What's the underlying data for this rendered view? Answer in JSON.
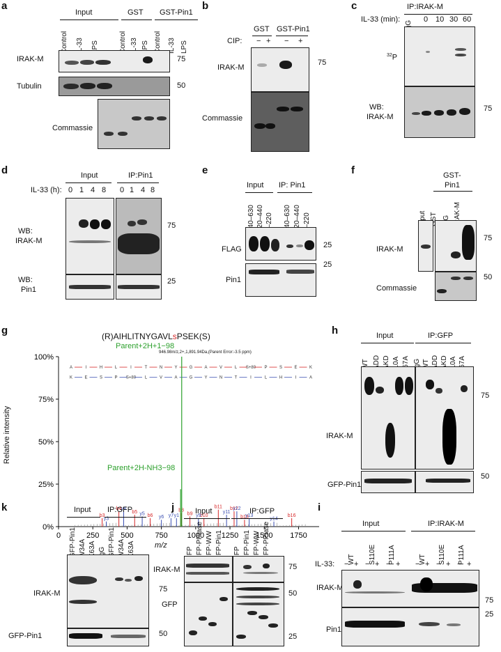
{
  "panels": {
    "a": {
      "letter": "a",
      "groups": [
        "Input",
        "GST",
        "GST-Pin1"
      ],
      "lanes": [
        "Control",
        "IL-33",
        "LPS",
        "Control",
        "IL-33",
        "LPS",
        "Control",
        "IL-33",
        "LPS"
      ],
      "rows": [
        "IRAK-M",
        "Tubulin",
        "Commassie"
      ],
      "mw": [
        "75",
        "50"
      ]
    },
    "b": {
      "letter": "b",
      "groups": [
        "GST",
        "GST-Pin1"
      ],
      "cip_label": "CIP:",
      "cip_signs": [
        "−",
        "+",
        "−",
        "+"
      ],
      "rows": [
        "IRAK-M",
        "Commassie"
      ],
      "mw": [
        "75"
      ]
    },
    "c": {
      "letter": "c",
      "header": "IP:IRAK-M",
      "time_label": "IL-33 (min):",
      "lanes": [
        "IgG",
        "0",
        "10",
        "30",
        "60"
      ],
      "rows": [
        "32P",
        "WB:",
        "IRAK-M"
      ],
      "p32_sup": "32",
      "p32_base": "P",
      "mw": [
        "75"
      ]
    },
    "d": {
      "letter": "d",
      "groups": [
        "Input",
        "IP:Pin1"
      ],
      "time_label": "IL-33 (h):",
      "lanes": [
        "0",
        "1",
        "4",
        "8",
        "0",
        "1",
        "4",
        "8"
      ],
      "rows": [
        "WB:",
        "IRAK-M",
        "WB:",
        "Pin1"
      ],
      "mw": [
        "75",
        "25"
      ]
    },
    "e": {
      "letter": "e",
      "groups": [
        "Input",
        "IP: Pin1"
      ],
      "lanes": [
        "440–630",
        "220–440",
        "1–220",
        "440–630",
        "220–440",
        "1–220"
      ],
      "rows": [
        "FLAG",
        "Pin1"
      ],
      "mw": [
        "25",
        "25"
      ]
    },
    "f": {
      "letter": "f",
      "header_line1": "GST-",
      "header_line2": "Pin1",
      "lanes": [
        "Input",
        "GST",
        "IgG",
        "IRAK-M"
      ],
      "rows": [
        "IRAK-M",
        "Commassie"
      ],
      "mw": [
        "75",
        "50"
      ]
    },
    "g": {
      "letter": "g",
      "peptide_prefix": "(R)AIHLITNYGAVL",
      "peptide_mod": "s",
      "peptide_suffix": "PSEK(S)",
      "annotation_top": "Parent+2H+1−98",
      "annotation_mid": "Parent+2H-NH3−98",
      "precursor_info": "946.98m/z,2+,1,891.94Da,(Parent Error:-3.5 ppm)",
      "y_label": "Relative intensity",
      "x_label": "m/z",
      "top_seq": [
        "A",
        "I",
        "H",
        "L",
        "I",
        "T",
        "N",
        "Y",
        "G",
        "A",
        "V",
        "L",
        "S+80",
        "P",
        "S",
        "E",
        "K"
      ],
      "bottom_seq": [
        "K",
        "E",
        "S",
        "P",
        "S+80",
        "L",
        "V",
        "A",
        "G",
        "Y",
        "N",
        "T",
        "I",
        "L",
        "H",
        "I",
        "A"
      ],
      "peak_labels_b": [
        "b3",
        "b4",
        "b5",
        "b6",
        "b8",
        "b9",
        "b10",
        "b11",
        "b12",
        "b13",
        "b16"
      ],
      "peak_labels_y": [
        "y3",
        "y4",
        "y5",
        "y6",
        "y7",
        "y1",
        "y9",
        "y11",
        "y12",
        "y13",
        "y14"
      ]
    },
    "h": {
      "letter": "h",
      "groups": [
        "Input",
        "IP:GFP"
      ],
      "lanes": [
        "WT",
        "ΔDD",
        "ΔKD",
        "S110A",
        "S467A",
        "IgG",
        "WT",
        "ΔDD",
        "ΔKD",
        "S110A",
        "S467A"
      ],
      "rows": [
        "IRAK-M",
        "GFP-Pin1"
      ],
      "mw": [
        "75",
        "50"
      ]
    },
    "k": {
      "letter": "k",
      "groups": [
        "Input",
        "IP:GFP"
      ],
      "lanes": [
        "GFP-Pin1",
        "W34A",
        "K63A",
        "IgG",
        "GFP-Pin1",
        "W34A",
        "K63A"
      ],
      "rows": [
        "IRAK-M",
        "GFP-Pin1"
      ],
      "mw": [
        "75",
        "50"
      ]
    },
    "j": {
      "letter": "j",
      "groups": [
        "Input",
        "IP:GFP"
      ],
      "lanes": [
        "GFP",
        "GFP-PPIase",
        "GFP-WW",
        "GFP-Pin1",
        "GFP",
        "GFP-Pin1",
        "GFP-WW",
        "GFP-PPIase"
      ],
      "rows": [
        "IRAK-M",
        "GFP"
      ],
      "mw": [
        "75",
        "50",
        "25"
      ]
    },
    "i": {
      "letter": "i",
      "groups": [
        "Input",
        "IP:IRAK-M"
      ],
      "lanes": [
        "WT",
        "S110E",
        "P111A",
        "WT",
        "S110E",
        "P111A"
      ],
      "il33_label": "IL-33:",
      "signs": [
        "−",
        "+",
        "−",
        "+",
        "−",
        "+",
        "−",
        "+",
        "−",
        "+",
        "−",
        "+"
      ],
      "rows": [
        "IRAK-M",
        "Pin1"
      ],
      "mw": [
        "75",
        "25"
      ]
    }
  },
  "chart_data": {
    "type": "bar",
    "title": "(R)AIHLITNYGAVLsPSEK(S)",
    "xlabel": "m/z",
    "ylabel": "Relative intensity",
    "xlim": [
      0,
      1900
    ],
    "ylim": [
      0,
      100
    ],
    "x_ticks": [
      0,
      250,
      500,
      750,
      1000,
      1250,
      1500,
      1750
    ],
    "y_ticks": [
      "0%",
      "25%",
      "50%",
      "75%",
      "100%"
    ],
    "series": [
      {
        "name": "b ions",
        "color": "#d62728",
        "x": [
          318,
          440,
          555,
          668,
          895,
          958,
          1060,
          1165,
          1280,
          1356,
          1700
        ],
        "values": [
          5,
          9,
          7,
          5,
          8,
          6,
          5,
          10,
          9,
          4,
          5
        ],
        "labels": [
          "b3",
          "b4",
          "b5",
          "b6",
          "b8",
          "b9",
          "b10",
          "b11",
          "b12",
          "b13",
          "b16"
        ]
      },
      {
        "name": "y ions",
        "color": "#3b50b2",
        "x": [
          348,
          475,
          610,
          750,
          820,
          860,
          1020,
          1225,
          1300,
          1390,
          1570
        ],
        "values": [
          3,
          9,
          6,
          4,
          5,
          5,
          5,
          7,
          9,
          5,
          3
        ],
        "labels": [
          "y3",
          "y4",
          "y5",
          "y6",
          "y7",
          "y1",
          "y9",
          "y11",
          "y12",
          "y13",
          "y14"
        ]
      },
      {
        "name": "precursor",
        "color": "#2ca02c",
        "x": [
          898,
          890
        ],
        "values": [
          100,
          22
        ],
        "labels": [
          "Parent+2H+1−98",
          "Parent+2H-NH3−98"
        ]
      }
    ]
  }
}
